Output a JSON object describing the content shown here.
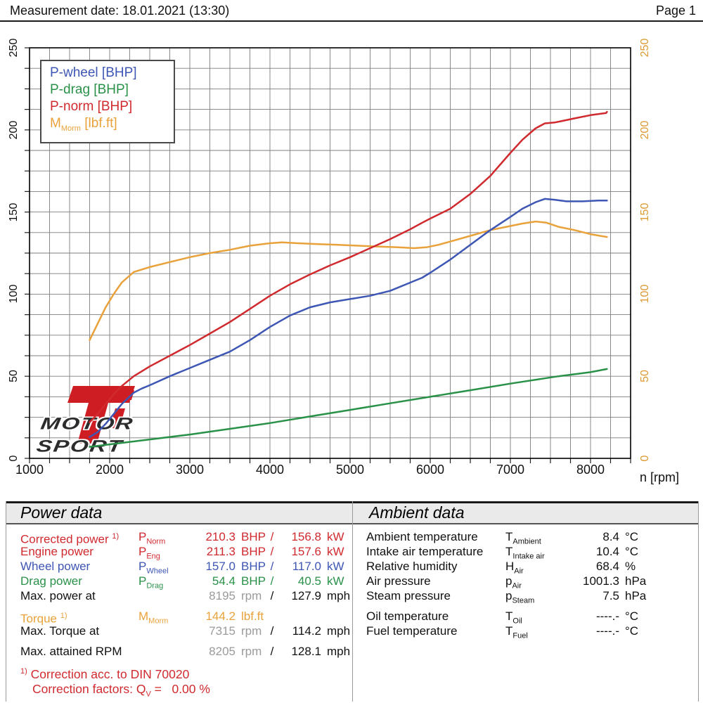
{
  "header": {
    "measurement_label": "Measurement date: 18.01.2021 (13:30)",
    "page_label": "Page 1"
  },
  "palette": {
    "red": "#d02a2f",
    "blue": "#3e56b4",
    "green": "#2a9149",
    "orange": "#e9a23b",
    "black": "#111111",
    "muted": "#9b9b9b",
    "grid": "#7d7d7d",
    "right_axis": "#dc9a33",
    "logo_red": "#cf1d24"
  },
  "chart": {
    "x_axis_label": "n [rpm]",
    "x_ticks": [
      "1000",
      "2000",
      "3000",
      "4000",
      "5000",
      "6000",
      "7000",
      "8000"
    ],
    "y_ticks_left": [
      "0",
      "50",
      "100",
      "150",
      "200",
      "250"
    ],
    "y_ticks_right": [
      "0",
      "50",
      "100",
      "150",
      "200",
      "250"
    ],
    "legend": [
      {
        "text": "P-wheel [BHP]",
        "color": "blue"
      },
      {
        "text": "P-drag [BHP]",
        "color": "green"
      },
      {
        "text": "P-norm [BHP]",
        "color": "red"
      },
      {
        "base": "M",
        "sub": "Morm",
        "rest": " [lbf.ft]",
        "color": "orange"
      }
    ],
    "logo": {
      "mark": "Ti",
      "word1": "MOTOR",
      "word2": "SPORT"
    }
  },
  "chart_data": {
    "type": "line",
    "title": "",
    "xlabel": "n [rpm]",
    "ylabel": "",
    "xlim": [
      1000,
      8500
    ],
    "ylim": [
      0,
      250
    ],
    "grid": true,
    "legend_position": "top-left",
    "series": [
      {
        "name": "M-norm [lbf.ft]",
        "color": "orange",
        "points": [
          [
            1750,
            72
          ],
          [
            1850,
            82
          ],
          [
            1950,
            92
          ],
          [
            2050,
            100
          ],
          [
            2150,
            107
          ],
          [
            2300,
            113.5
          ],
          [
            2400,
            115
          ],
          [
            2500,
            116.5
          ],
          [
            2750,
            119.5
          ],
          [
            3000,
            122.5
          ],
          [
            3250,
            125
          ],
          [
            3500,
            127
          ],
          [
            3750,
            129.5
          ],
          [
            4000,
            131
          ],
          [
            4150,
            131.5
          ],
          [
            4350,
            131
          ],
          [
            4600,
            130.5
          ],
          [
            4850,
            130
          ],
          [
            5100,
            129.5
          ],
          [
            5350,
            129
          ],
          [
            5600,
            128.5
          ],
          [
            5800,
            128
          ],
          [
            5950,
            128.5
          ],
          [
            6100,
            130
          ],
          [
            6250,
            132
          ],
          [
            6500,
            135.5
          ],
          [
            6750,
            139
          ],
          [
            7000,
            141.5
          ],
          [
            7150,
            143
          ],
          [
            7315,
            144.2
          ],
          [
            7450,
            143.5
          ],
          [
            7600,
            141
          ],
          [
            7800,
            139
          ],
          [
            8000,
            136.5
          ],
          [
            8205,
            134.8
          ]
        ]
      },
      {
        "name": "P-drag [BHP]",
        "color": "green",
        "points": [
          [
            1750,
            7
          ],
          [
            2000,
            8.5
          ],
          [
            2500,
            11.5
          ],
          [
            3000,
            14.5
          ],
          [
            3500,
            18
          ],
          [
            4000,
            21.5
          ],
          [
            4500,
            25.5
          ],
          [
            5000,
            29.5
          ],
          [
            5500,
            33.5
          ],
          [
            6000,
            37.5
          ],
          [
            6500,
            41.5
          ],
          [
            7000,
            45.5
          ],
          [
            7400,
            48.5
          ],
          [
            7600,
            50
          ],
          [
            8000,
            52.5
          ],
          [
            8205,
            54.4
          ]
        ]
      },
      {
        "name": "P-wheel [BHP]",
        "color": "blue",
        "points": [
          [
            1750,
            13
          ],
          [
            1850,
            16
          ],
          [
            1950,
            21
          ],
          [
            2050,
            27
          ],
          [
            2150,
            33
          ],
          [
            2300,
            40
          ],
          [
            2400,
            42.5
          ],
          [
            2500,
            44.5
          ],
          [
            2750,
            50
          ],
          [
            3000,
            55
          ],
          [
            3250,
            60
          ],
          [
            3500,
            65
          ],
          [
            3750,
            72
          ],
          [
            4000,
            80
          ],
          [
            4250,
            87
          ],
          [
            4500,
            92
          ],
          [
            4750,
            95
          ],
          [
            5000,
            97
          ],
          [
            5250,
            99
          ],
          [
            5500,
            102
          ],
          [
            5750,
            107
          ],
          [
            5900,
            110
          ],
          [
            6000,
            113
          ],
          [
            6250,
            121
          ],
          [
            6500,
            130
          ],
          [
            6750,
            139
          ],
          [
            7000,
            147
          ],
          [
            7150,
            152
          ],
          [
            7315,
            156
          ],
          [
            7430,
            158
          ],
          [
            7550,
            157.5
          ],
          [
            7700,
            156.5
          ],
          [
            7900,
            156.5
          ],
          [
            8100,
            157
          ],
          [
            8205,
            157
          ]
        ]
      },
      {
        "name": "P-norm [BHP]",
        "color": "red",
        "points": [
          [
            1750,
            22
          ],
          [
            1850,
            27
          ],
          [
            1950,
            33
          ],
          [
            2050,
            39
          ],
          [
            2150,
            44
          ],
          [
            2300,
            50
          ],
          [
            2400,
            53
          ],
          [
            2500,
            56
          ],
          [
            2750,
            62.5
          ],
          [
            3000,
            69
          ],
          [
            3250,
            76
          ],
          [
            3500,
            83
          ],
          [
            3750,
            91
          ],
          [
            4000,
            99
          ],
          [
            4250,
            106
          ],
          [
            4500,
            112
          ],
          [
            4750,
            117.5
          ],
          [
            5000,
            122.5
          ],
          [
            5250,
            128
          ],
          [
            5500,
            133.5
          ],
          [
            5750,
            139.5
          ],
          [
            5900,
            143.5
          ],
          [
            6000,
            146
          ],
          [
            6250,
            152
          ],
          [
            6500,
            161
          ],
          [
            6750,
            172
          ],
          [
            7000,
            186
          ],
          [
            7150,
            194
          ],
          [
            7315,
            201
          ],
          [
            7430,
            204
          ],
          [
            7550,
            204.5
          ],
          [
            7650,
            205.5
          ],
          [
            7800,
            207
          ],
          [
            8000,
            209
          ],
          [
            8195,
            210.3
          ],
          [
            8205,
            211
          ]
        ]
      }
    ]
  },
  "power_table": {
    "title": "Power data",
    "rows": [
      {
        "type": "data",
        "color": "red",
        "label": "Corrected power",
        "sup": "1)",
        "sym": {
          "base": "P",
          "sub": "Norm"
        },
        "v1": "210.3",
        "u1": "BHP",
        "slash": "/",
        "v2": "156.8",
        "u2": "kW"
      },
      {
        "type": "data",
        "color": "red",
        "label": "Engine power",
        "sym": {
          "base": "P",
          "sub": "Eng"
        },
        "v1": "211.3",
        "u1": "BHP",
        "slash": "/",
        "v2": "157.6",
        "u2": "kW"
      },
      {
        "type": "data",
        "color": "blue",
        "label": "Wheel power",
        "sym": {
          "base": "P",
          "sub": "Wheel"
        },
        "v1": "157.0",
        "u1": "BHP",
        "slash": "/",
        "v2": "117.0",
        "u2": "kW"
      },
      {
        "type": "data",
        "color": "green",
        "label": "Drag power",
        "sym": {
          "base": "P",
          "sub": "Drag"
        },
        "v1": "54.4",
        "u1": "BHP",
        "slash": "/",
        "v2": "40.5",
        "u2": "kW"
      },
      {
        "type": "data",
        "color": "black",
        "muted": true,
        "label": "Max. power at",
        "v1": "8195",
        "u1": "rpm",
        "slash": "/",
        "v2": "127.9",
        "u2": "mph"
      },
      {
        "type": "gap"
      },
      {
        "type": "data",
        "color": "orange",
        "label": "Torque",
        "sup": "1)",
        "sym": {
          "base": "M",
          "sub": "Morm"
        },
        "v1": "144.2",
        "u1": "lbf.ft"
      },
      {
        "type": "data",
        "color": "black",
        "muted": true,
        "label": "Max. Torque at",
        "v1": "7315",
        "u1": "rpm",
        "slash": "/",
        "v2": "114.2",
        "u2": "mph"
      },
      {
        "type": "gap"
      },
      {
        "type": "data",
        "color": "black",
        "muted": true,
        "label": "Max. attained RPM",
        "v1": "8205",
        "u1": "rpm",
        "slash": "/",
        "v2": "128.1",
        "u2": "mph"
      }
    ],
    "notes": [
      {
        "sup": "1)",
        "text": " Correction acc. to DIN 70020"
      },
      {
        "pre": "Correction factors: Q",
        "sub": "V",
        "post": " =   0.00 %"
      }
    ]
  },
  "ambient_table": {
    "title": "Ambient data",
    "rows": [
      {
        "type": "data",
        "label": "Ambient temperature",
        "sym": {
          "base": "T",
          "sub": "Ambient"
        },
        "v": "8.4",
        "u": "°C"
      },
      {
        "type": "data",
        "label": "Intake air temperature",
        "sym": {
          "base": "T",
          "sub": "Intake air"
        },
        "v": "10.4",
        "u": "°C"
      },
      {
        "type": "data",
        "label": "Relative humidity",
        "sym": {
          "base": "H",
          "sub": "Air"
        },
        "v": "68.4",
        "u": "%"
      },
      {
        "type": "data",
        "label": "Air pressure",
        "sym": {
          "base": "p",
          "sub": "Air"
        },
        "v": "1001.3",
        "u": "hPa"
      },
      {
        "type": "data",
        "label": "Steam pressure",
        "sym": {
          "base": "p",
          "sub": "Steam"
        },
        "v": "7.5",
        "u": "hPa"
      },
      {
        "type": "gap"
      },
      {
        "type": "data",
        "label": "Oil temperature",
        "sym": {
          "base": "T",
          "sub": "Oil"
        },
        "v": "----.-",
        "u": "°C"
      },
      {
        "type": "data",
        "label": "Fuel temperature",
        "sym": {
          "base": "T",
          "sub": "Fuel"
        },
        "v": "----.-",
        "u": "°C"
      }
    ]
  }
}
